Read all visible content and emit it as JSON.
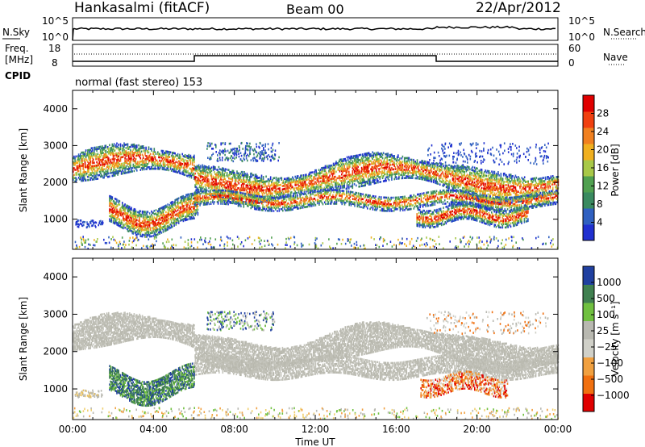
{
  "header": {
    "station": "Hankasalmi (fitACF)",
    "beam": "Beam 00",
    "date": "22/Apr/2012"
  },
  "noise_panel": {
    "left_label": "N.Sky",
    "right_label": "N.Search",
    "left_ticks": [
      "10^5",
      "10^0"
    ],
    "right_ticks": [
      "10^5",
      "10^0"
    ]
  },
  "freq_panel": {
    "left_label_1": "Freq.",
    "left_label_2": "[MHz]",
    "right_label": "Nave",
    "left_ticks": [
      "18",
      "8"
    ],
    "right_ticks": [
      "60",
      "0"
    ]
  },
  "cpid": {
    "label": "CPID",
    "value": "normal (fast stereo) 153"
  },
  "chart_data": [
    {
      "type": "heatmap",
      "quantity": "Power",
      "colorbar_label": "Power [dB]",
      "ylabel": "Slant Range [km]",
      "ylim": [
        180,
        4500
      ],
      "yticks": [
        1000,
        2000,
        3000,
        4000
      ],
      "xlim": [
        "00:00",
        "24:00"
      ],
      "colorbar_ticks": [
        "4",
        "8",
        "12",
        "16",
        "20",
        "24",
        "28"
      ],
      "bands": [
        {
          "range_km": [
            2000,
            2700
          ],
          "time_h": [
            0,
            6
          ],
          "level": "20-28 dB"
        },
        {
          "range_km": [
            900,
            1500
          ],
          "time_h": [
            2,
            6
          ],
          "level": "16-28 dB"
        },
        {
          "range_km": [
            1300,
            2600
          ],
          "time_h": [
            6,
            24
          ],
          "level": "8-24 dB"
        },
        {
          "range_km": [
            800,
            1400
          ],
          "time_h": [
            17,
            22
          ],
          "level": "16-28 dB"
        }
      ]
    },
    {
      "type": "heatmap",
      "quantity": "Velocity",
      "colorbar_label": "Velocity [m s⁻¹]",
      "ylabel": "Slant Range [km]",
      "ylim": [
        180,
        4500
      ],
      "yticks": [
        1000,
        2000,
        3000,
        4000
      ],
      "xlim": [
        "00:00",
        "24:00"
      ],
      "xlabel": "Time UT",
      "xticks": [
        "00:00",
        "04:00",
        "08:00",
        "12:00",
        "16:00",
        "20:00",
        "00:00"
      ],
      "colorbar_ticks": [
        "1000",
        "500",
        "100",
        "25",
        "−25",
        "−100",
        "−500",
        "−1000"
      ],
      "bands": [
        {
          "range_km": [
            1300,
            2900
          ],
          "time_h": [
            0,
            24
          ],
          "level": "ground scatter (-25..25)"
        },
        {
          "range_km": [
            1000,
            1800
          ],
          "time_h": [
            2,
            5
          ],
          "level": "100-1000"
        },
        {
          "range_km": [
            900,
            1400
          ],
          "time_h": [
            17,
            21
          ],
          "level": "-100..-1000"
        }
      ]
    }
  ],
  "colors": {
    "power_scale": [
      "#2030d0",
      "#3060c0",
      "#3a8a60",
      "#50a050",
      "#a8c848",
      "#f0b020",
      "#f08020",
      "#f04010",
      "#e00000"
    ],
    "velocity_scale": [
      "#2040a0",
      "#408050",
      "#70c040",
      "#b8b8b0",
      "#d0d0c8",
      "#f0a040",
      "#f07010",
      "#e00000"
    ],
    "ground_scatter": "#bebeb4"
  }
}
